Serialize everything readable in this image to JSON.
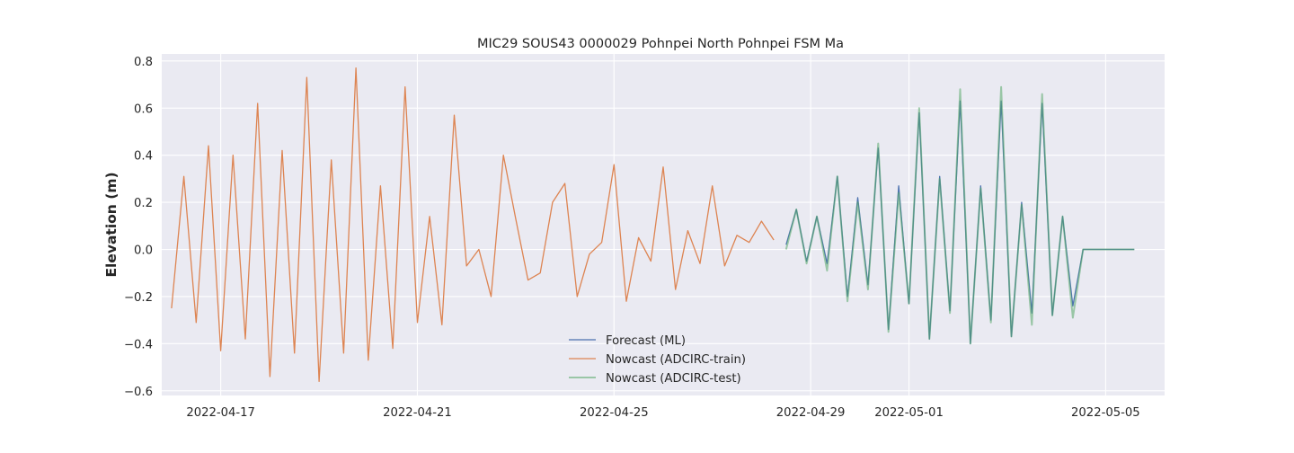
{
  "chart_data": {
    "type": "line",
    "title": "MIC29 SOUS43 0000029 Pohnpei North Pohnpei FSM Ma",
    "xlabel": "",
    "ylabel": "Elevation (m)",
    "xlim": [
      "2022-04-15T19:12",
      "2022-05-06T04:48"
    ],
    "ylim": [
      -0.62,
      0.83
    ],
    "x_ticks": [
      "2022-04-17",
      "2022-04-21",
      "2022-04-25",
      "2022-04-29",
      "2022-05-01",
      "2022-05-05"
    ],
    "y_ticks": [
      "−0.6",
      "−0.4",
      "−0.2",
      "0.0",
      "0.2",
      "0.4",
      "0.6",
      "0.8"
    ],
    "grid": true,
    "legend_position": "lower-center",
    "series": [
      {
        "name": "Forecast (ML)",
        "color": "#4c72b0",
        "x": [
          "2022-04-28T12:00",
          "2022-04-28T17:00",
          "2022-04-28T22:00",
          "2022-04-29T03:00",
          "2022-04-29T08:00",
          "2022-04-29T13:00",
          "2022-04-29T18:00",
          "2022-04-29T23:00",
          "2022-04-30T04:00",
          "2022-04-30T09:00",
          "2022-04-30T14:00",
          "2022-04-30T19:00",
          "2022-05-01T00:00",
          "2022-05-01T05:00",
          "2022-05-01T10:00",
          "2022-05-01T15:00",
          "2022-05-01T20:00",
          "2022-05-02T01:00",
          "2022-05-02T06:00",
          "2022-05-02T11:00",
          "2022-05-02T16:00",
          "2022-05-02T21:00",
          "2022-05-03T02:00",
          "2022-05-03T07:00",
          "2022-05-03T12:00",
          "2022-05-03T17:00",
          "2022-05-03T22:00",
          "2022-05-04T03:00",
          "2022-05-04T08:00",
          "2022-05-04T13:00",
          "2022-05-04T18:00",
          "2022-05-04T23:00",
          "2022-05-05T04:00",
          "2022-05-05T09:00",
          "2022-05-05T14:00"
        ],
        "y": [
          0.02,
          0.17,
          -0.05,
          0.14,
          -0.06,
          0.31,
          -0.2,
          0.22,
          -0.15,
          0.43,
          -0.34,
          0.27,
          -0.23,
          0.58,
          -0.38,
          0.31,
          -0.26,
          0.63,
          -0.4,
          0.27,
          -0.3,
          0.63,
          -0.37,
          0.2,
          -0.27,
          0.62,
          -0.28,
          0.14,
          -0.24,
          0.0,
          0.0,
          0.0,
          0.0,
          0.0,
          0.0
        ]
      },
      {
        "name": "Nowcast (ADCIRC-train)",
        "color": "#dd8452",
        "x": [
          "2022-04-16T00:00",
          "2022-04-16T06:00",
          "2022-04-16T12:00",
          "2022-04-16T18:00",
          "2022-04-17T00:00",
          "2022-04-17T06:00",
          "2022-04-17T12:00",
          "2022-04-17T18:00",
          "2022-04-18T00:00",
          "2022-04-18T06:00",
          "2022-04-18T12:00",
          "2022-04-18T18:00",
          "2022-04-19T00:00",
          "2022-04-19T06:00",
          "2022-04-19T12:00",
          "2022-04-19T18:00",
          "2022-04-20T00:00",
          "2022-04-20T06:00",
          "2022-04-20T12:00",
          "2022-04-20T18:00",
          "2022-04-21T00:00",
          "2022-04-21T06:00",
          "2022-04-21T12:00",
          "2022-04-21T18:00",
          "2022-04-22T00:00",
          "2022-04-22T06:00",
          "2022-04-22T12:00",
          "2022-04-22T18:00",
          "2022-04-23T00:00",
          "2022-04-23T06:00",
          "2022-04-23T12:00",
          "2022-04-23T18:00",
          "2022-04-24T00:00",
          "2022-04-24T06:00",
          "2022-04-24T12:00",
          "2022-04-24T18:00",
          "2022-04-25T00:00",
          "2022-04-25T06:00",
          "2022-04-25T12:00",
          "2022-04-25T18:00",
          "2022-04-26T00:00",
          "2022-04-26T06:00",
          "2022-04-26T12:00",
          "2022-04-26T18:00",
          "2022-04-27T00:00",
          "2022-04-27T06:00",
          "2022-04-27T12:00",
          "2022-04-27T18:00",
          "2022-04-28T00:00",
          "2022-04-28T06:00"
        ],
        "y": [
          -0.25,
          0.31,
          -0.31,
          0.44,
          -0.43,
          0.4,
          -0.38,
          0.62,
          -0.54,
          0.42,
          -0.44,
          0.73,
          -0.56,
          0.38,
          -0.44,
          0.77,
          -0.47,
          0.27,
          -0.42,
          0.69,
          -0.31,
          0.14,
          -0.32,
          0.57,
          -0.07,
          0.0,
          -0.2,
          0.4,
          0.13,
          -0.13,
          -0.1,
          0.2,
          0.28,
          -0.2,
          -0.02,
          0.03,
          0.36,
          -0.22,
          0.05,
          -0.05,
          0.35,
          -0.17,
          0.08,
          -0.06,
          0.27,
          -0.07,
          0.06,
          0.03,
          0.12,
          0.04
        ]
      },
      {
        "name": "Nowcast (ADCIRC-test)",
        "color": "#55a868",
        "x": [
          "2022-04-28T12:00",
          "2022-04-28T17:00",
          "2022-04-28T22:00",
          "2022-04-29T03:00",
          "2022-04-29T08:00",
          "2022-04-29T13:00",
          "2022-04-29T18:00",
          "2022-04-29T23:00",
          "2022-04-30T04:00",
          "2022-04-30T09:00",
          "2022-04-30T14:00",
          "2022-04-30T19:00",
          "2022-05-01T00:00",
          "2022-05-01T05:00",
          "2022-05-01T10:00",
          "2022-05-01T15:00",
          "2022-05-01T20:00",
          "2022-05-02T01:00",
          "2022-05-02T06:00",
          "2022-05-02T11:00",
          "2022-05-02T16:00",
          "2022-05-02T21:00",
          "2022-05-03T02:00",
          "2022-05-03T07:00",
          "2022-05-03T12:00",
          "2022-05-03T17:00",
          "2022-05-03T22:00",
          "2022-05-04T03:00",
          "2022-05-04T08:00",
          "2022-05-04T13:00",
          "2022-05-04T18:00",
          "2022-05-04T23:00",
          "2022-05-05T04:00",
          "2022-05-05T09:00",
          "2022-05-05T14:00"
        ],
        "y": [
          0.0,
          0.17,
          -0.06,
          0.14,
          -0.09,
          0.31,
          -0.22,
          0.2,
          -0.17,
          0.45,
          -0.35,
          0.24,
          -0.23,
          0.6,
          -0.38,
          0.3,
          -0.27,
          0.68,
          -0.4,
          0.26,
          -0.31,
          0.69,
          -0.37,
          0.19,
          -0.32,
          0.66,
          -0.28,
          0.14,
          -0.29,
          0.0,
          0.0,
          0.0,
          0.0,
          0.0,
          0.0
        ]
      }
    ]
  }
}
